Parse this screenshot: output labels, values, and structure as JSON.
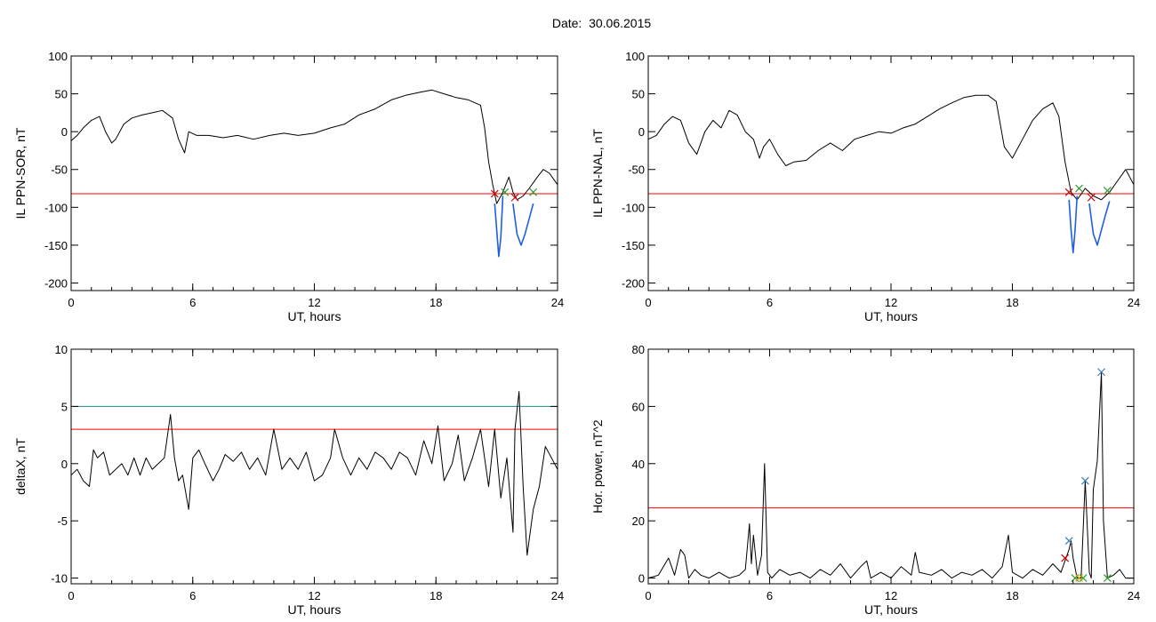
{
  "figure": {
    "title_prefix": "Date:",
    "date": "30.06.2015"
  },
  "chart_data": [
    {
      "id": "panel-sor",
      "type": "line",
      "xlabel": "UT, hours",
      "ylabel": "IL PPN-SOR, nT",
      "xlim": [
        0,
        24
      ],
      "ylim": [
        -210,
        100
      ],
      "xticks": [
        0,
        6,
        12,
        18,
        24
      ],
      "yticks": [
        -200,
        -150,
        -100,
        -50,
        0,
        50,
        100
      ],
      "thresholds": [
        {
          "value": -82,
          "color": "#ff0000"
        }
      ],
      "series": [
        {
          "color": "#000000",
          "x": [
            0,
            0.3,
            0.6,
            1.0,
            1.4,
            1.7,
            2.0,
            2.2,
            2.6,
            3.0,
            3.5,
            4.0,
            4.5,
            5.0,
            5.3,
            5.6,
            5.8,
            6.2,
            6.8,
            7.5,
            8.2,
            9.0,
            9.8,
            10.5,
            11.2,
            12.0,
            12.8,
            13.5,
            14.2,
            15.0,
            15.8,
            16.5,
            17.2,
            17.8,
            18.4,
            19.0,
            19.6,
            20.2,
            20.4,
            20.6,
            20.8,
            21.0,
            21.3,
            21.6,
            21.8,
            22.0,
            22.3,
            22.6,
            23.0,
            23.3,
            23.6,
            24.0
          ],
          "values": [
            -12,
            -5,
            5,
            15,
            20,
            0,
            -15,
            -10,
            10,
            18,
            22,
            25,
            28,
            18,
            -10,
            -28,
            0,
            -5,
            -5,
            -8,
            -5,
            -10,
            -5,
            -2,
            -5,
            -2,
            5,
            10,
            22,
            30,
            42,
            48,
            52,
            55,
            50,
            45,
            42,
            35,
            5,
            -40,
            -70,
            -95,
            -80,
            -60,
            -80,
            -90,
            -85,
            -75,
            -60,
            -50,
            -55,
            -70
          ]
        },
        {
          "color": "#1f5fe0",
          "x": [
            20.9,
            21.0,
            21.1,
            21.2,
            21.3
          ],
          "values": [
            -95,
            -130,
            -165,
            -140,
            -85
          ]
        },
        {
          "color": "#1f5fe0",
          "x": [
            21.8,
            22.0,
            22.2,
            22.4,
            22.6,
            22.8
          ],
          "values": [
            -95,
            -135,
            -150,
            -135,
            -115,
            -95
          ]
        }
      ],
      "markers": [
        {
          "x": 20.9,
          "y": -82,
          "color": "#cc0000"
        },
        {
          "x": 21.9,
          "y": -87,
          "color": "#cc0000"
        },
        {
          "x": 21.4,
          "y": -80,
          "color": "#2e9e2e"
        },
        {
          "x": 22.8,
          "y": -80,
          "color": "#2e9e2e"
        }
      ]
    },
    {
      "id": "panel-nal",
      "type": "line",
      "xlabel": "UT, hours",
      "ylabel": "IL PPN-NAL, nT",
      "xlim": [
        0,
        24
      ],
      "ylim": [
        -210,
        100
      ],
      "xticks": [
        0,
        6,
        12,
        18,
        24
      ],
      "yticks": [
        -200,
        -150,
        -100,
        -50,
        0,
        50,
        100
      ],
      "thresholds": [
        {
          "value": -82,
          "color": "#ff0000"
        }
      ],
      "series": [
        {
          "color": "#000000",
          "x": [
            0,
            0.4,
            0.8,
            1.2,
            1.6,
            2.0,
            2.4,
            2.8,
            3.2,
            3.6,
            4.0,
            4.4,
            4.8,
            5.2,
            5.5,
            5.7,
            6.0,
            6.4,
            6.8,
            7.2,
            7.8,
            8.4,
            9.0,
            9.6,
            10.2,
            10.8,
            11.4,
            12.0,
            12.6,
            13.2,
            13.8,
            14.4,
            15.0,
            15.6,
            16.2,
            16.8,
            17.2,
            17.6,
            18.0,
            18.5,
            19.0,
            19.5,
            20.0,
            20.3,
            20.6,
            20.9,
            21.2,
            21.6,
            22.0,
            22.4,
            22.8,
            23.2,
            23.6,
            24.0
          ],
          "values": [
            -10,
            -5,
            10,
            20,
            15,
            -15,
            -30,
            0,
            15,
            5,
            28,
            22,
            0,
            -10,
            -35,
            -20,
            -10,
            -30,
            -45,
            -40,
            -38,
            -25,
            -15,
            -25,
            -10,
            -5,
            0,
            -2,
            5,
            10,
            20,
            30,
            38,
            45,
            48,
            48,
            40,
            -20,
            -35,
            -10,
            15,
            30,
            38,
            20,
            -40,
            -80,
            -90,
            -75,
            -85,
            -90,
            -80,
            -65,
            -50,
            -70
          ]
        },
        {
          "color": "#1f5fe0",
          "x": [
            20.8,
            20.9,
            21.0,
            21.1,
            21.2
          ],
          "values": [
            -90,
            -130,
            -160,
            -130,
            -85
          ]
        },
        {
          "color": "#1f5fe0",
          "x": [
            21.8,
            22.0,
            22.2,
            22.4,
            22.6,
            22.8
          ],
          "values": [
            -95,
            -135,
            -150,
            -130,
            -110,
            -92
          ]
        }
      ],
      "markers": [
        {
          "x": 20.8,
          "y": -80,
          "color": "#cc0000"
        },
        {
          "x": 21.9,
          "y": -87,
          "color": "#cc0000"
        },
        {
          "x": 21.3,
          "y": -75,
          "color": "#2e9e2e"
        },
        {
          "x": 22.7,
          "y": -78,
          "color": "#2e9e2e"
        }
      ]
    },
    {
      "id": "panel-deltax",
      "type": "line",
      "xlabel": "UT, hours",
      "ylabel": "deltaX, nT",
      "xlim": [
        0,
        24
      ],
      "ylim": [
        -10.5,
        10
      ],
      "xticks": [
        0,
        6,
        12,
        18,
        24
      ],
      "yticks": [
        -10,
        -5,
        0,
        5,
        10
      ],
      "thresholds": [
        {
          "value": 5,
          "color": "#1a8a8a"
        },
        {
          "value": 3,
          "color": "#ff0000"
        }
      ],
      "series": [
        {
          "color": "#000000",
          "x": [
            0,
            0.3,
            0.6,
            0.9,
            1.1,
            1.3,
            1.6,
            1.9,
            2.2,
            2.5,
            2.8,
            3.1,
            3.4,
            3.7,
            4.0,
            4.3,
            4.6,
            4.9,
            5.1,
            5.3,
            5.5,
            5.8,
            6.0,
            6.3,
            6.6,
            7.0,
            7.3,
            7.6,
            8.0,
            8.4,
            8.8,
            9.2,
            9.6,
            10.0,
            10.4,
            10.8,
            11.2,
            11.6,
            12.0,
            12.4,
            12.8,
            13.0,
            13.4,
            13.8,
            14.2,
            14.6,
            15.0,
            15.4,
            15.8,
            16.2,
            16.6,
            17.0,
            17.4,
            17.8,
            18.1,
            18.4,
            18.8,
            19.1,
            19.4,
            19.8,
            20.2,
            20.6,
            20.9,
            21.2,
            21.5,
            21.8,
            21.9,
            22.1,
            22.3,
            22.5,
            22.8,
            23.1,
            23.4,
            23.7,
            24.0
          ],
          "values": [
            -1,
            -0.5,
            -1.5,
            -2.0,
            1.2,
            0.5,
            1.0,
            -1.0,
            -0.5,
            0,
            -1.0,
            0.5,
            -1.0,
            0.5,
            -0.5,
            0,
            0.5,
            4.3,
            0.5,
            -1.5,
            -1.0,
            -4.0,
            0.5,
            1.2,
            0.0,
            -1.5,
            -0.5,
            0.8,
            0.2,
            1.0,
            -0.5,
            0.5,
            -1.0,
            3.0,
            -0.5,
            0.5,
            -0.5,
            1.0,
            -1.5,
            -1.0,
            0.5,
            3.0,
            0.5,
            -1.0,
            0.5,
            -0.5,
            1.0,
            0.5,
            -0.5,
            1.0,
            0.5,
            -1.0,
            2.0,
            0,
            3.3,
            -1.5,
            0.0,
            2.5,
            -1.5,
            0.5,
            3.0,
            -2.0,
            3.0,
            -3.0,
            0.5,
            -6.0,
            3.0,
            6.3,
            -2.0,
            -8.0,
            -4.0,
            -2.0,
            1.5,
            0.5,
            -0.5
          ]
        }
      ],
      "markers": []
    },
    {
      "id": "panel-power",
      "type": "line",
      "xlabel": "UT, hours",
      "ylabel": "Hor. power, nT^2",
      "xlim": [
        0,
        24
      ],
      "ylim": [
        -2,
        80
      ],
      "xticks": [
        0,
        6,
        12,
        18,
        24
      ],
      "yticks": [
        0,
        20,
        40,
        60,
        80
      ],
      "thresholds": [
        {
          "value": 24.5,
          "color": "#ff0000"
        }
      ],
      "series": [
        {
          "color": "#000000",
          "x": [
            0,
            0.5,
            1.0,
            1.3,
            1.6,
            1.8,
            2.0,
            2.3,
            2.6,
            3.0,
            3.5,
            4.0,
            4.5,
            4.8,
            5.0,
            5.1,
            5.2,
            5.4,
            5.6,
            5.75,
            5.9,
            6.1,
            6.5,
            7.0,
            7.5,
            8.0,
            8.5,
            9.0,
            9.5,
            10.0,
            10.5,
            10.8,
            11.0,
            11.5,
            12.0,
            12.5,
            13.0,
            13.2,
            13.4,
            14.0,
            14.5,
            15.0,
            15.5,
            16.0,
            16.5,
            17.0,
            17.5,
            17.8,
            18.0,
            18.5,
            19.0,
            19.5,
            20.0,
            20.4,
            20.8,
            20.9,
            21.0,
            21.2,
            21.4,
            21.6,
            21.8,
            21.9,
            22.0,
            22.2,
            22.4,
            22.5,
            22.7,
            23.0,
            23.3,
            23.6,
            24.0
          ],
          "values": [
            0,
            1,
            7,
            1,
            10,
            8,
            0,
            3,
            1,
            0,
            2,
            0,
            1,
            3,
            19,
            5,
            15,
            1,
            8,
            40,
            2,
            0,
            3,
            1,
            2,
            0,
            3,
            1,
            5,
            0,
            4,
            6,
            0,
            2,
            0,
            4,
            1,
            9,
            2,
            1,
            3,
            0,
            2,
            1,
            3,
            0,
            4,
            15,
            2,
            0,
            3,
            1,
            5,
            2,
            10,
            13,
            7,
            0,
            0,
            34,
            2,
            0,
            31,
            41,
            72,
            20,
            0,
            1,
            3,
            0,
            0
          ]
        }
      ],
      "markers": [
        {
          "x": 20.8,
          "y": 13,
          "color": "#3a7ab8"
        },
        {
          "x": 21.6,
          "y": 34,
          "color": "#3a7ab8"
        },
        {
          "x": 22.4,
          "y": 72,
          "color": "#3a7ab8"
        },
        {
          "x": 20.6,
          "y": 7,
          "color": "#cc0000"
        },
        {
          "x": 21.1,
          "y": 0,
          "color": "#2e9e2e"
        },
        {
          "x": 21.5,
          "y": 0,
          "color": "#2e9e2e"
        },
        {
          "x": 22.7,
          "y": 0,
          "color": "#2e9e2e"
        },
        {
          "x": 21.3,
          "y": 0,
          "color": "#e0a000"
        }
      ]
    }
  ]
}
